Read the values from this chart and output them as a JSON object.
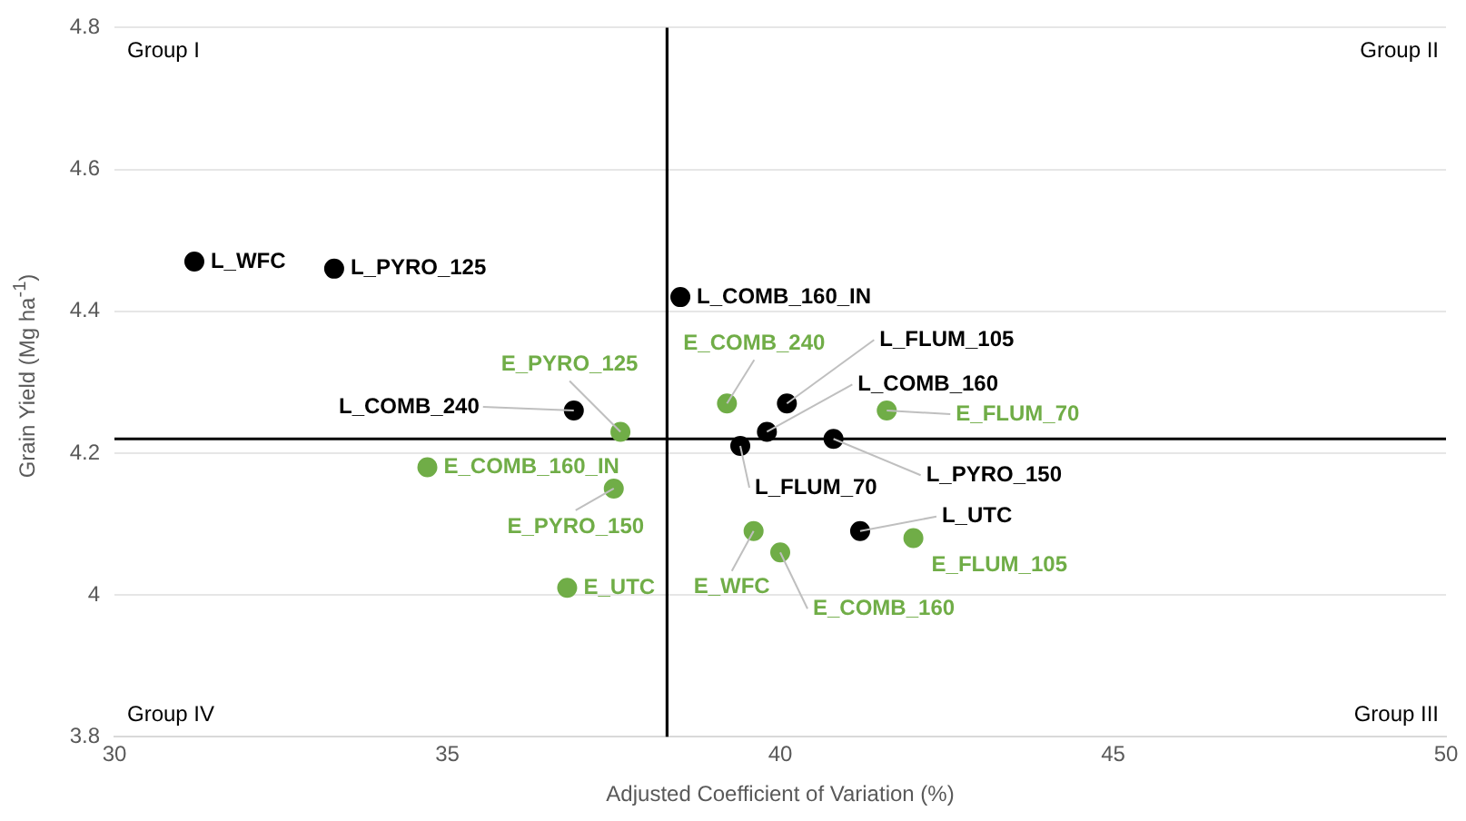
{
  "chart_data": {
    "type": "scatter",
    "xlabel": "Adjusted Coefficient of Variation (%)",
    "ylabel": "Grain Yield (Mg ha$^{-1}$)",
    "xlim": [
      30,
      50
    ],
    "xticks": [
      30,
      35,
      40,
      45,
      50
    ],
    "ylim": [
      3.8,
      4.8
    ],
    "yticks": [
      {
        "value": 3.8,
        "label": "3.8"
      },
      {
        "value": 4,
        "label": "4"
      },
      {
        "value": 4.2,
        "label": "4.2"
      },
      {
        "value": 4.4,
        "label": "4.4"
      },
      {
        "value": 4.6,
        "label": "4.6"
      },
      {
        "value": 4.8,
        "label": "4.8"
      }
    ],
    "grid": "y",
    "legend": false,
    "marker": "circle",
    "series": [
      {
        "color": "#000000",
        "x": [
          31.2,
          33.3,
          38.5,
          36.9,
          39.8,
          40.1,
          39.4,
          40.8,
          41.2
        ],
        "values": [
          4.47,
          4.46,
          4.42,
          4.26,
          4.23,
          4.27,
          4.21,
          4.22,
          4.09
        ]
      },
      {
        "color": "#70ad47",
        "x": [
          37.6,
          34.7,
          37.5,
          36.8,
          39.2,
          41.6,
          39.6,
          40.0,
          42.0
        ],
        "values": [
          4.23,
          4.18,
          4.15,
          4.01,
          4.27,
          4.26,
          4.09,
          4.06,
          4.08
        ]
      }
    ],
    "ref_lines": [
      {
        "axis": "x",
        "value": 38.3,
        "color": "#000000"
      },
      {
        "axis": "y",
        "value": 4.22,
        "color": "#000000"
      }
    ],
    "annotations": [
      "Group I",
      "Group II",
      "Group III",
      "Group IV",
      {
        "text": "L_WFC",
        "x": 31.2,
        "y": 4.47
      },
      {
        "text": "L_PYRO_125",
        "x": 33.3,
        "y": 4.46
      },
      {
        "text": "L_COMB_160_IN",
        "x": 38.5,
        "y": 4.42
      },
      {
        "text": "L_COMB_240",
        "x": 36.9,
        "y": 4.26
      },
      {
        "text": "L_COMB_160",
        "x": 39.8,
        "y": 4.23
      },
      {
        "text": "L_FLUM_105",
        "x": 40.1,
        "y": 4.27
      },
      {
        "text": "L_FLUM_70",
        "x": 39.4,
        "y": 4.21
      },
      {
        "text": "L_PYRO_150",
        "x": 40.8,
        "y": 4.22
      },
      {
        "text": "L_UTC",
        "x": 41.2,
        "y": 4.09
      },
      {
        "text": "E_PYRO_125",
        "x": 37.6,
        "y": 4.23
      },
      {
        "text": "E_COMB_160_IN",
        "x": 34.7,
        "y": 4.18
      },
      {
        "text": "E_PYRO_150",
        "x": 37.5,
        "y": 4.15
      },
      {
        "text": "E_UTC",
        "x": 36.8,
        "y": 4.01
      },
      {
        "text": "E_COMB_240",
        "x": 39.2,
        "y": 4.27
      },
      {
        "text": "E_FLUM_70",
        "x": 41.6,
        "y": 4.26
      },
      {
        "text": "E_WFC",
        "x": 39.6,
        "y": 4.09
      },
      {
        "text": "E_COMB_160",
        "x": 40.0,
        "y": 4.06
      },
      {
        "text": "E_FLUM_105",
        "x": 42.0,
        "y": 4.08
      }
    ]
  }
}
